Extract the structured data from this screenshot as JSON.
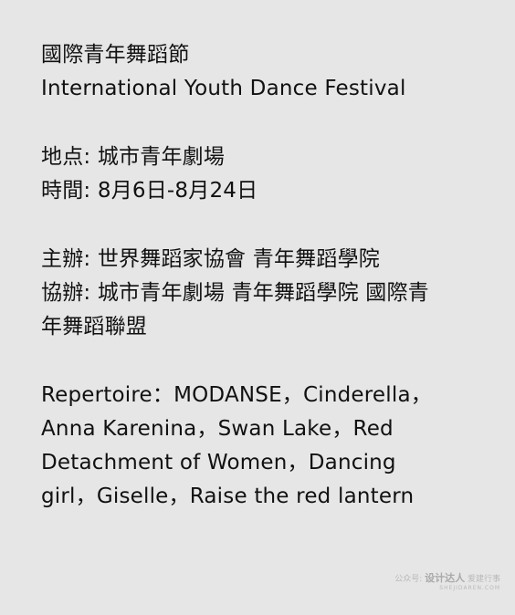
{
  "festival": {
    "title_zh": "國際青年舞蹈節",
    "title_en": "International Youth Dance Festival"
  },
  "details": {
    "location": "地点: 城市青年劇場",
    "time": "時間: 8月6日-8月24日"
  },
  "organizers": {
    "host": "主辦: 世界舞蹈家協會 青年舞蹈學院",
    "co_host_line1": "協辦: 城市青年劇場 青年舞蹈學院 國際青",
    "co_host_line2": "年舞蹈聯盟"
  },
  "repertoire": {
    "line1": "Repertoire：MODANSE，Cinderella，",
    "line2": "Anna Karenina，Swan Lake，Red",
    "line3": "Detachment of Women，Dancing",
    "line4": "girl，Giselle，Raise the red lantern"
  },
  "watermark": {
    "prefix": "公众号: ",
    "brand": "设计达人",
    "suffix": " 爱建行事",
    "url": "SHEJIDAREN.COM"
  }
}
